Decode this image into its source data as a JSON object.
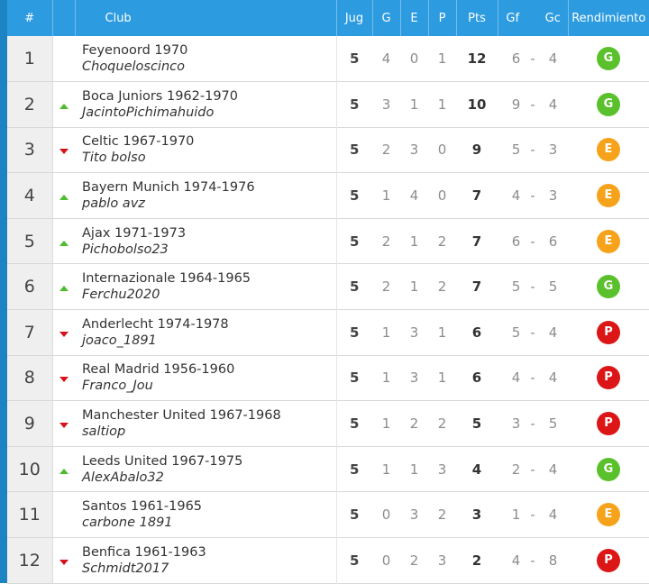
{
  "header": {
    "pos": "#",
    "club": "Club",
    "jug": "Jug",
    "g": "G",
    "e": "E",
    "p": "P",
    "pts": "Pts",
    "gf": "Gf",
    "gc": "Gc",
    "rend": "Rendimiento"
  },
  "colors": {
    "header_bg": "#2c9be0",
    "edge": "#1d84c4",
    "up": "#4cbc2c",
    "down": "#d8111a",
    "G": "#5ac12c",
    "E": "#f6a21b",
    "P": "#dc1616"
  },
  "rows": [
    {
      "pos": "1",
      "trend": "none",
      "club": "Feyenoord 1970",
      "user": "Choqueloscinco",
      "jug": "5",
      "g": "4",
      "e": "0",
      "p": "1",
      "pts": "12",
      "gf": "6",
      "gc": "4",
      "rend": "G"
    },
    {
      "pos": "2",
      "trend": "up",
      "club": "Boca Juniors 1962-1970",
      "user": "JacintoPichimahuido",
      "jug": "5",
      "g": "3",
      "e": "1",
      "p": "1",
      "pts": "10",
      "gf": "9",
      "gc": "4",
      "rend": "G"
    },
    {
      "pos": "3",
      "trend": "down",
      "club": "Celtic 1967-1970",
      "user": "Tito bolso",
      "jug": "5",
      "g": "2",
      "e": "3",
      "p": "0",
      "pts": "9",
      "gf": "5",
      "gc": "3",
      "rend": "E"
    },
    {
      "pos": "4",
      "trend": "up",
      "club": "Bayern Munich 1974-1976",
      "user": "pablo avz",
      "jug": "5",
      "g": "1",
      "e": "4",
      "p": "0",
      "pts": "7",
      "gf": "4",
      "gc": "3",
      "rend": "E"
    },
    {
      "pos": "5",
      "trend": "up",
      "club": "Ajax 1971-1973",
      "user": "Pichobolso23",
      "jug": "5",
      "g": "2",
      "e": "1",
      "p": "2",
      "pts": "7",
      "gf": "6",
      "gc": "6",
      "rend": "E"
    },
    {
      "pos": "6",
      "trend": "up",
      "club": "Internazionale 1964-1965",
      "user": "Ferchu2020",
      "jug": "5",
      "g": "2",
      "e": "1",
      "p": "2",
      "pts": "7",
      "gf": "5",
      "gc": "5",
      "rend": "G"
    },
    {
      "pos": "7",
      "trend": "down",
      "club": "Anderlecht 1974-1978",
      "user": "joaco_1891",
      "jug": "5",
      "g": "1",
      "e": "3",
      "p": "1",
      "pts": "6",
      "gf": "5",
      "gc": "4",
      "rend": "P"
    },
    {
      "pos": "8",
      "trend": "down",
      "club": "Real Madrid 1956-1960",
      "user": "Franco_Jou",
      "jug": "5",
      "g": "1",
      "e": "3",
      "p": "1",
      "pts": "6",
      "gf": "4",
      "gc": "4",
      "rend": "P"
    },
    {
      "pos": "9",
      "trend": "down",
      "club": "Manchester United 1967-1968",
      "user": "saltiop",
      "jug": "5",
      "g": "1",
      "e": "2",
      "p": "2",
      "pts": "5",
      "gf": "3",
      "gc": "5",
      "rend": "P"
    },
    {
      "pos": "10",
      "trend": "up",
      "club": "Leeds United 1967-1975",
      "user": "AlexAbalo32",
      "jug": "5",
      "g": "1",
      "e": "1",
      "p": "3",
      "pts": "4",
      "gf": "2",
      "gc": "4",
      "rend": "G"
    },
    {
      "pos": "11",
      "trend": "none",
      "club": "Santos 1961-1965",
      "user": "carbone 1891",
      "jug": "5",
      "g": "0",
      "e": "3",
      "p": "2",
      "pts": "3",
      "gf": "1",
      "gc": "4",
      "rend": "E"
    },
    {
      "pos": "12",
      "trend": "down",
      "club": "Benfica 1961-1963",
      "user": "Schmidt2017",
      "jug": "5",
      "g": "0",
      "e": "2",
      "p": "3",
      "pts": "2",
      "gf": "4",
      "gc": "8",
      "rend": "P"
    }
  ]
}
